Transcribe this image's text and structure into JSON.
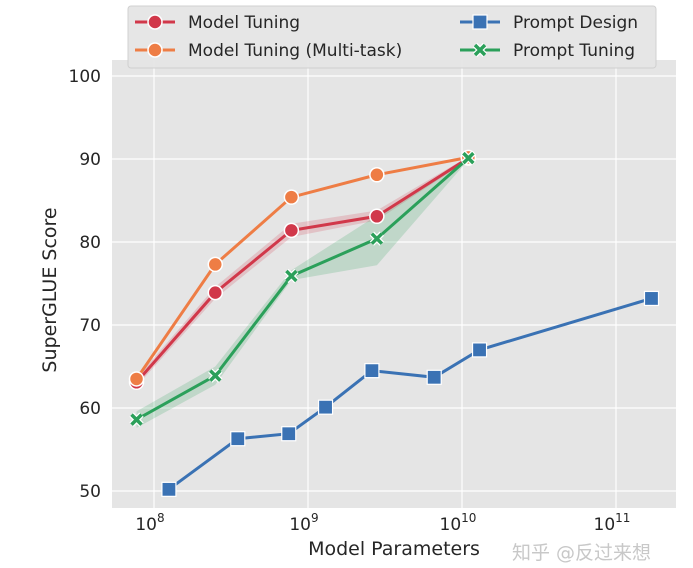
{
  "chart_data": {
    "type": "line",
    "xlabel": "Model Parameters",
    "ylabel": "SuperGLUE Score",
    "xscale": "log",
    "xlim": [
      60000000.0,
      400000000000.0
    ],
    "ylim": [
      48,
      102
    ],
    "x_ticks": [
      {
        "base": "10",
        "exp": "8",
        "value": 100000000.0
      },
      {
        "base": "10",
        "exp": "9",
        "value": 1000000000.0
      },
      {
        "base": "10",
        "exp": "10",
        "value": 10000000000.0
      },
      {
        "base": "10",
        "exp": "11",
        "value": 100000000000.0
      }
    ],
    "y_ticks": [
      "50",
      "60",
      "70",
      "80",
      "90",
      "100"
    ],
    "grid": true,
    "background": "#e5e5e5",
    "legend_position": "top",
    "series": [
      {
        "name": "Model Tuning",
        "color": "#d1384a",
        "marker": "circle",
        "x": [
          77000000.0,
          250000000.0,
          780000000.0,
          2800000000.0,
          11000000000.0
        ],
        "y": [
          63.1,
          73.9,
          81.4,
          83.1,
          90.1
        ],
        "ci_low": [
          62.6,
          73.2,
          80.6,
          82.6,
          89.9
        ],
        "ci_high": [
          63.6,
          74.6,
          82.2,
          83.8,
          90.3
        ]
      },
      {
        "name": "Model Tuning (Multi-task)",
        "color": "#ee7d45",
        "marker": "circle",
        "x": [
          77000000.0,
          250000000.0,
          780000000.0,
          2800000000.0,
          11000000000.0
        ],
        "y": [
          63.5,
          77.3,
          85.4,
          88.1,
          90.2
        ]
      },
      {
        "name": "Prompt Design",
        "color": "#3a72b4",
        "marker": "square",
        "x": [
          125000000.0,
          350000000.0,
          750000000.0,
          1300000000.0,
          2600000000.0,
          6600000000.0,
          13000000000.0,
          170000000000.0
        ],
        "y": [
          50.2,
          56.3,
          56.9,
          60.1,
          64.5,
          63.7,
          67.0,
          73.2
        ]
      },
      {
        "name": "Prompt Tuning",
        "color": "#2ba05a",
        "marker": "x",
        "x": [
          77000000.0,
          250000000.0,
          780000000.0,
          2800000000.0,
          11000000000.0
        ],
        "y": [
          58.6,
          63.9,
          75.9,
          80.4,
          90.1
        ],
        "ci_low": [
          57.6,
          62.8,
          75.4,
          77.2,
          89.9
        ],
        "ci_high": [
          59.6,
          65.0,
          76.6,
          83.2,
          90.3
        ]
      }
    ]
  },
  "watermark": "知乎 @反过来想"
}
